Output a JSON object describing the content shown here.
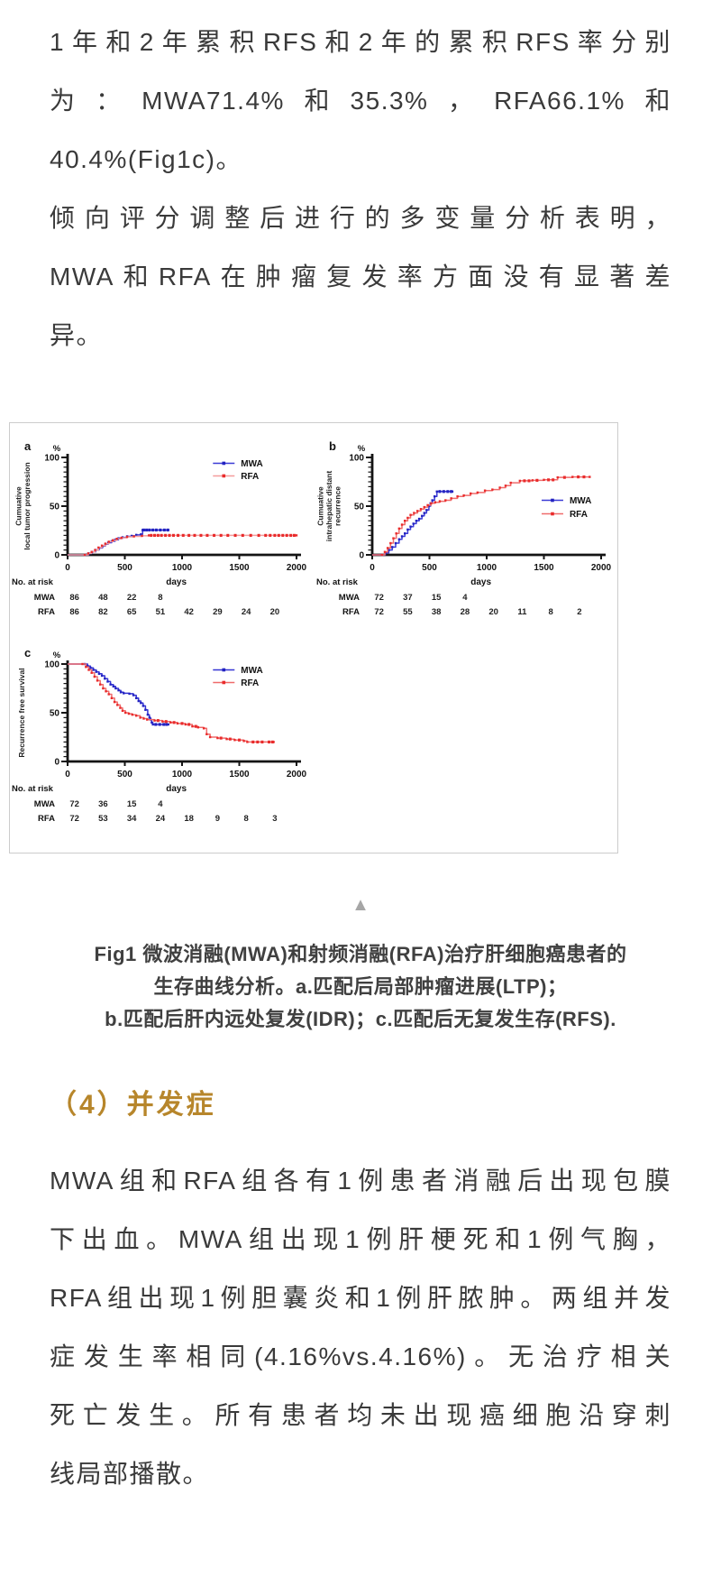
{
  "colors": {
    "text": "#3a3a3a",
    "heading": "#b7862b",
    "triangle": "#a6a6a6",
    "figure_border": "#cccccc",
    "axis": "#141414",
    "mwa_line": "#3b3bd6",
    "mwa_marker": "#2323c0",
    "rfa_line_light": "#f49c9c",
    "rfa_line": "#ef6b6b",
    "rfa_marker": "#e92b2b"
  },
  "article": {
    "p1": {
      "lines": [
        "1年和2年累积RFS和2年的累积RFS率分别",
        "为：MWA71.4%和35.3%，RFA66.1%和",
        "40.4%(Fig1c)。"
      ]
    },
    "p2": {
      "lines": [
        "倾向评分调整后进行的多变量分析表明，",
        "MWA和RFA在肿瘤复发率方面没有显著差",
        "异。"
      ]
    },
    "collapse_icon": "▲",
    "caption": {
      "lines": [
        "Fig1 微波消融(MWA)和射频消融(RFA)治疗肝细胞癌患者的",
        "生存曲线分析。a.匹配后局部肿瘤进展(LTP)；",
        "b.匹配后肝内远处复发(IDR)；c.匹配后无复发生存(RFS)."
      ]
    },
    "section_heading": "（4）并发症",
    "p3": {
      "lines": [
        "MWA组和RFA组各有1例患者消融后出现包膜",
        "下出血。MWA组出现1例肝梗死和1例气胸，",
        "RFA组出现1例胆囊炎和1例肝脓肿。两组并发",
        "症发生率相同(4.16%vs.4.16%)。无治疗相关",
        "死亡发生。所有患者均未出现癌细胞沿穿刺",
        "线局部播散。"
      ]
    }
  },
  "chart_data": [
    {
      "id": "a",
      "type": "line",
      "style": "kaplan-meier-step",
      "panel_label": "a",
      "y_unit": "%",
      "xlabel": "days",
      "ylabel_lines": [
        "Cumuative",
        "local tumor progression"
      ],
      "xlim": [
        0,
        2000
      ],
      "ylim": [
        0,
        100
      ],
      "x_ticks": [
        0,
        500,
        1000,
        1500,
        2000
      ],
      "y_ticks": [
        0,
        50,
        100
      ],
      "legend_pos": "tr",
      "series": [
        {
          "name": "MWA",
          "line": "#3b3bd6",
          "marker": "#2323c0",
          "points": [
            [
              0,
              0
            ],
            [
              155,
              0
            ],
            [
              185,
              1.5
            ],
            [
              215,
              3
            ],
            [
              245,
              5
            ],
            [
              275,
              7
            ],
            [
              305,
              9
            ],
            [
              330,
              11
            ],
            [
              355,
              12.5
            ],
            [
              385,
              14
            ],
            [
              415,
              15.5
            ],
            [
              445,
              17
            ],
            [
              480,
              18
            ],
            [
              520,
              19
            ],
            [
              560,
              19.5
            ],
            [
              600,
              20.5
            ],
            [
              640,
              21
            ],
            [
              655,
              25.5
            ],
            [
              880,
              25.5
            ]
          ],
          "censors": [
            665,
            690,
            715,
            745,
            775,
            810,
            845,
            875
          ]
        },
        {
          "name": "RFA",
          "line": "#f49c9c",
          "marker": "#e92b2b",
          "points": [
            [
              0,
              0
            ],
            [
              150,
              0
            ],
            [
              180,
              1.5
            ],
            [
              210,
              3
            ],
            [
              240,
              5
            ],
            [
              270,
              7.5
            ],
            [
              300,
              9.5
            ],
            [
              330,
              11.5
            ],
            [
              360,
              13.5
            ],
            [
              395,
              15
            ],
            [
              430,
              16.5
            ],
            [
              470,
              17.5
            ],
            [
              520,
              18.5
            ],
            [
              580,
              19
            ],
            [
              650,
              19.5
            ],
            [
              710,
              20
            ],
            [
              2000,
              20
            ]
          ],
          "censors": [
            730,
            760,
            790,
            820,
            855,
            890,
            925,
            965,
            1010,
            1060,
            1110,
            1165,
            1220,
            1280,
            1340,
            1400,
            1465,
            1530,
            1600,
            1670,
            1730,
            1770,
            1810,
            1845,
            1880,
            1915,
            1950,
            1980
          ]
        }
      ],
      "risk_table": {
        "title": "No. at risk",
        "interval_days": 250,
        "rows": [
          {
            "label": "MWA",
            "values": [
              86,
              48,
              22,
              8
            ]
          },
          {
            "label": "RFA",
            "values": [
              86,
              82,
              65,
              51,
              42,
              29,
              24,
              20
            ]
          }
        ]
      }
    },
    {
      "id": "b",
      "type": "line",
      "style": "kaplan-meier-step",
      "panel_label": "b",
      "y_unit": "%",
      "xlabel": "days",
      "ylabel_lines": [
        "Cumuative",
        "intrahepatic distant",
        "recurrence"
      ],
      "xlim": [
        0,
        2000
      ],
      "ylim": [
        0,
        100
      ],
      "x_ticks": [
        0,
        500,
        1000,
        1500,
        2000
      ],
      "y_ticks": [
        0,
        50,
        100
      ],
      "legend_pos": "mr",
      "series": [
        {
          "name": "MWA",
          "line": "#3b3bd6",
          "marker": "#2323c0",
          "points": [
            [
              0,
              0
            ],
            [
              85,
              0
            ],
            [
              115,
              2
            ],
            [
              145,
              5
            ],
            [
              175,
              8
            ],
            [
              205,
              12
            ],
            [
              235,
              16
            ],
            [
              260,
              19
            ],
            [
              285,
              22
            ],
            [
              310,
              26
            ],
            [
              335,
              29
            ],
            [
              360,
              32
            ],
            [
              385,
              35
            ],
            [
              410,
              37
            ],
            [
              435,
              40
            ],
            [
              455,
              43
            ],
            [
              475,
              46
            ],
            [
              495,
              50
            ],
            [
              510,
              53
            ],
            [
              525,
              56
            ],
            [
              545,
              60
            ],
            [
              565,
              65
            ],
            [
              700,
              65
            ]
          ],
          "censors": [
            590,
            625,
            660,
            690
          ]
        },
        {
          "name": "RFA",
          "line": "#ef6b6b",
          "marker": "#e92b2b",
          "points": [
            [
              0,
              0
            ],
            [
              85,
              0
            ],
            [
              110,
              3
            ],
            [
              135,
              7
            ],
            [
              160,
              12
            ],
            [
              185,
              17
            ],
            [
              210,
              22
            ],
            [
              235,
              27
            ],
            [
              260,
              31
            ],
            [
              285,
              35
            ],
            [
              310,
              38
            ],
            [
              335,
              41
            ],
            [
              365,
              43
            ],
            [
              395,
              45
            ],
            [
              425,
              47
            ],
            [
              455,
              49
            ],
            [
              485,
              51
            ],
            [
              515,
              53
            ],
            [
              550,
              54
            ],
            [
              590,
              55
            ],
            [
              640,
              56
            ],
            [
              690,
              58
            ],
            [
              745,
              60
            ],
            [
              800,
              61
            ],
            [
              860,
              63
            ],
            [
              920,
              64
            ],
            [
              985,
              66
            ],
            [
              1050,
              67
            ],
            [
              1115,
              69
            ],
            [
              1165,
              71
            ],
            [
              1210,
              74
            ],
            [
              1290,
              76
            ],
            [
              1400,
              76.5
            ],
            [
              1500,
              77
            ],
            [
              1620,
              79.5
            ],
            [
              1750,
              80
            ],
            [
              1900,
              80
            ]
          ],
          "censors": [
            1330,
            1370,
            1440,
            1540,
            1580,
            1680,
            1800,
            1850
          ]
        }
      ],
      "risk_table": {
        "title": "No. at risk",
        "interval_days": 250,
        "rows": [
          {
            "label": "MWA",
            "values": [
              72,
              37,
              15,
              4
            ]
          },
          {
            "label": "RFA",
            "values": [
              72,
              55,
              38,
              28,
              20,
              11,
              8,
              2
            ]
          }
        ]
      }
    },
    {
      "id": "c",
      "type": "line",
      "style": "kaplan-meier-step",
      "panel_label": "c",
      "y_unit": "%",
      "xlabel": "days",
      "ylabel_lines": [
        "Recurrence free survival"
      ],
      "xlim": [
        0,
        2000
      ],
      "ylim": [
        0,
        100
      ],
      "x_ticks": [
        0,
        500,
        1000,
        1500,
        2000
      ],
      "y_ticks": [
        0,
        50,
        100
      ],
      "legend_pos": "tr",
      "series": [
        {
          "name": "MWA",
          "line": "#3434d4",
          "marker": "#2323c0",
          "points": [
            [
              0,
              100
            ],
            [
              150,
              100
            ],
            [
              175,
              98
            ],
            [
              200,
              96
            ],
            [
              225,
              94
            ],
            [
              250,
              92
            ],
            [
              275,
              90
            ],
            [
              300,
              88
            ],
            [
              325,
              85
            ],
            [
              350,
              82
            ],
            [
              375,
              79
            ],
            [
              400,
              77
            ],
            [
              420,
              75
            ],
            [
              445,
              73
            ],
            [
              465,
              71
            ],
            [
              490,
              70
            ],
            [
              540,
              69.5
            ],
            [
              575,
              68
            ],
            [
              600,
              65
            ],
            [
              620,
              62
            ],
            [
              640,
              60
            ],
            [
              660,
              57
            ],
            [
              680,
              53
            ],
            [
              700,
              48
            ],
            [
              715,
              45
            ],
            [
              725,
              43
            ],
            [
              735,
              40
            ],
            [
              745,
              38
            ],
            [
              880,
              38
            ]
          ],
          "censors": [
            770,
            805,
            840,
            865
          ]
        },
        {
          "name": "RFA",
          "line": "#ef6b6b",
          "marker": "#e92b2b",
          "points": [
            [
              0,
              100
            ],
            [
              130,
              100
            ],
            [
              160,
              97
            ],
            [
              185,
              94
            ],
            [
              210,
              91
            ],
            [
              235,
              87
            ],
            [
              260,
              83
            ],
            [
              285,
              79
            ],
            [
              310,
              75
            ],
            [
              335,
              72
            ],
            [
              360,
              69
            ],
            [
              385,
              65
            ],
            [
              410,
              61
            ],
            [
              435,
              58
            ],
            [
              460,
              55
            ],
            [
              480,
              52
            ],
            [
              505,
              50
            ],
            [
              535,
              49
            ],
            [
              565,
              48
            ],
            [
              600,
              47
            ],
            [
              635,
              45
            ],
            [
              665,
              44
            ],
            [
              695,
              43
            ],
            [
              760,
              42
            ],
            [
              830,
              41
            ],
            [
              900,
              40
            ],
            [
              960,
              39
            ],
            [
              1030,
              38
            ],
            [
              1090,
              36
            ],
            [
              1140,
              35
            ],
            [
              1190,
              34
            ],
            [
              1215,
              28
            ],
            [
              1245,
              25
            ],
            [
              1310,
              24
            ],
            [
              1390,
              23
            ],
            [
              1460,
              22
            ],
            [
              1540,
              21
            ],
            [
              1570,
              20
            ],
            [
              1800,
              20
            ]
          ],
          "censors": [
            790,
            860,
            930,
            1000,
            1060,
            1120,
            1340,
            1420,
            1500,
            1620,
            1660,
            1700,
            1760,
            1790
          ]
        }
      ],
      "risk_table": {
        "title": "No. at risk",
        "interval_days": 250,
        "rows": [
          {
            "label": "MWA",
            "values": [
              72,
              36,
              15,
              4
            ]
          },
          {
            "label": "RFA",
            "values": [
              72,
              53,
              34,
              24,
              18,
              9,
              8,
              3
            ]
          }
        ]
      }
    }
  ]
}
